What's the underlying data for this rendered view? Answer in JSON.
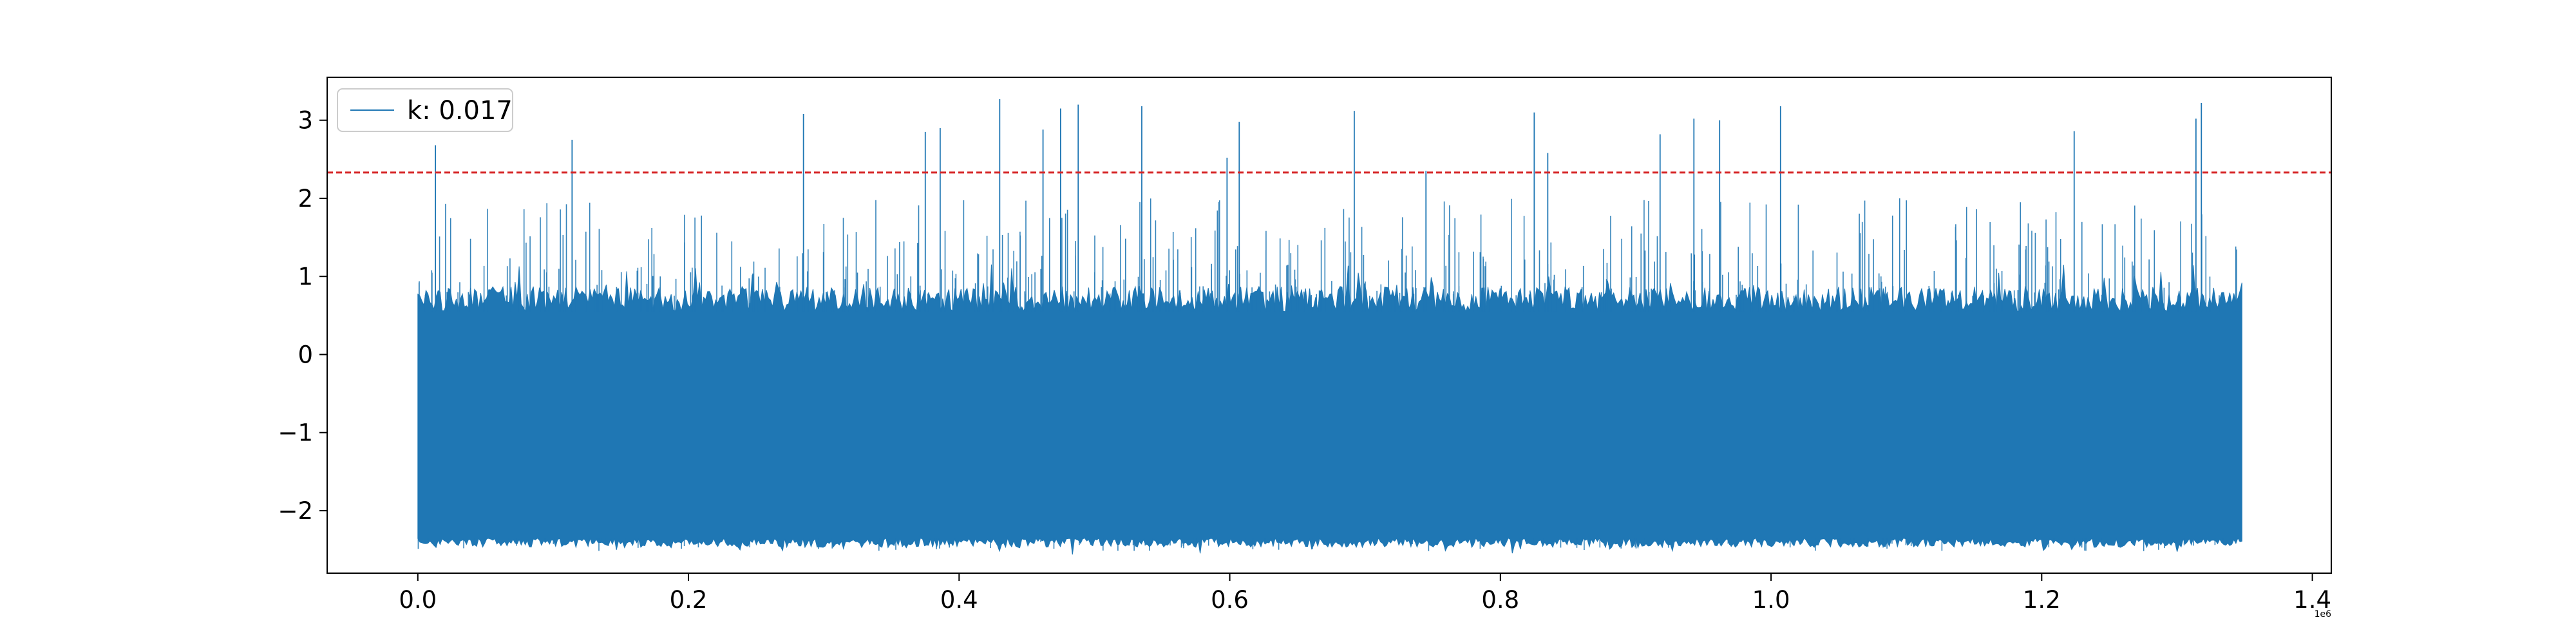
{
  "chart_data": {
    "type": "line",
    "title": "",
    "xlabel": "",
    "ylabel": "",
    "xlim": [
      -0.067,
      1.414
    ],
    "ylim": [
      -2.8,
      3.55
    ],
    "x_offset_label": "1e6",
    "x_ticks": [
      {
        "value": 0.0,
        "label": "0.0"
      },
      {
        "value": 0.2,
        "label": "0.2"
      },
      {
        "value": 0.4,
        "label": "0.4"
      },
      {
        "value": 0.6,
        "label": "0.6"
      },
      {
        "value": 0.8,
        "label": "0.8"
      },
      {
        "value": 1.0,
        "label": "1.0"
      },
      {
        "value": 1.2,
        "label": "1.2"
      },
      {
        "value": 1.4,
        "label": "1.4"
      }
    ],
    "y_ticks": [
      {
        "value": -2,
        "label": "−2"
      },
      {
        "value": -1,
        "label": "−1"
      },
      {
        "value": 0,
        "label": "0"
      },
      {
        "value": 1,
        "label": "1"
      },
      {
        "value": 2,
        "label": "2"
      },
      {
        "value": 3,
        "label": "3"
      }
    ],
    "grid": false,
    "legend_position": "top-left",
    "series": [
      {
        "name": "k: 0.017",
        "color": "#1f77b4",
        "x_range": [
          0.0,
          1.348
        ],
        "band": {
          "low": -2.35,
          "high": 0.55
        },
        "spikes": [
          {
            "x": 0.013,
            "y": 2.68
          },
          {
            "x": 0.114,
            "y": 2.75
          },
          {
            "x": 0.285,
            "y": 3.08
          },
          {
            "x": 0.375,
            "y": 2.85
          },
          {
            "x": 0.386,
            "y": 2.9
          },
          {
            "x": 0.43,
            "y": 3.27
          },
          {
            "x": 0.462,
            "y": 2.88
          },
          {
            "x": 0.475,
            "y": 3.15
          },
          {
            "x": 0.488,
            "y": 3.2
          },
          {
            "x": 0.535,
            "y": 3.18
          },
          {
            "x": 0.598,
            "y": 2.52
          },
          {
            "x": 0.607,
            "y": 2.98
          },
          {
            "x": 0.692,
            "y": 3.12
          },
          {
            "x": 0.745,
            "y": 2.35
          },
          {
            "x": 0.825,
            "y": 3.1
          },
          {
            "x": 0.835,
            "y": 2.58
          },
          {
            "x": 0.918,
            "y": 2.82
          },
          {
            "x": 0.943,
            "y": 3.02
          },
          {
            "x": 0.962,
            "y": 3.0
          },
          {
            "x": 1.007,
            "y": 3.18
          },
          {
            "x": 1.224,
            "y": 2.86
          },
          {
            "x": 1.314,
            "y": 3.02
          },
          {
            "x": 1.318,
            "y": 3.22
          }
        ]
      }
    ],
    "threshold": {
      "y": 2.33,
      "color": "#d62728",
      "style": "dashed"
    }
  }
}
